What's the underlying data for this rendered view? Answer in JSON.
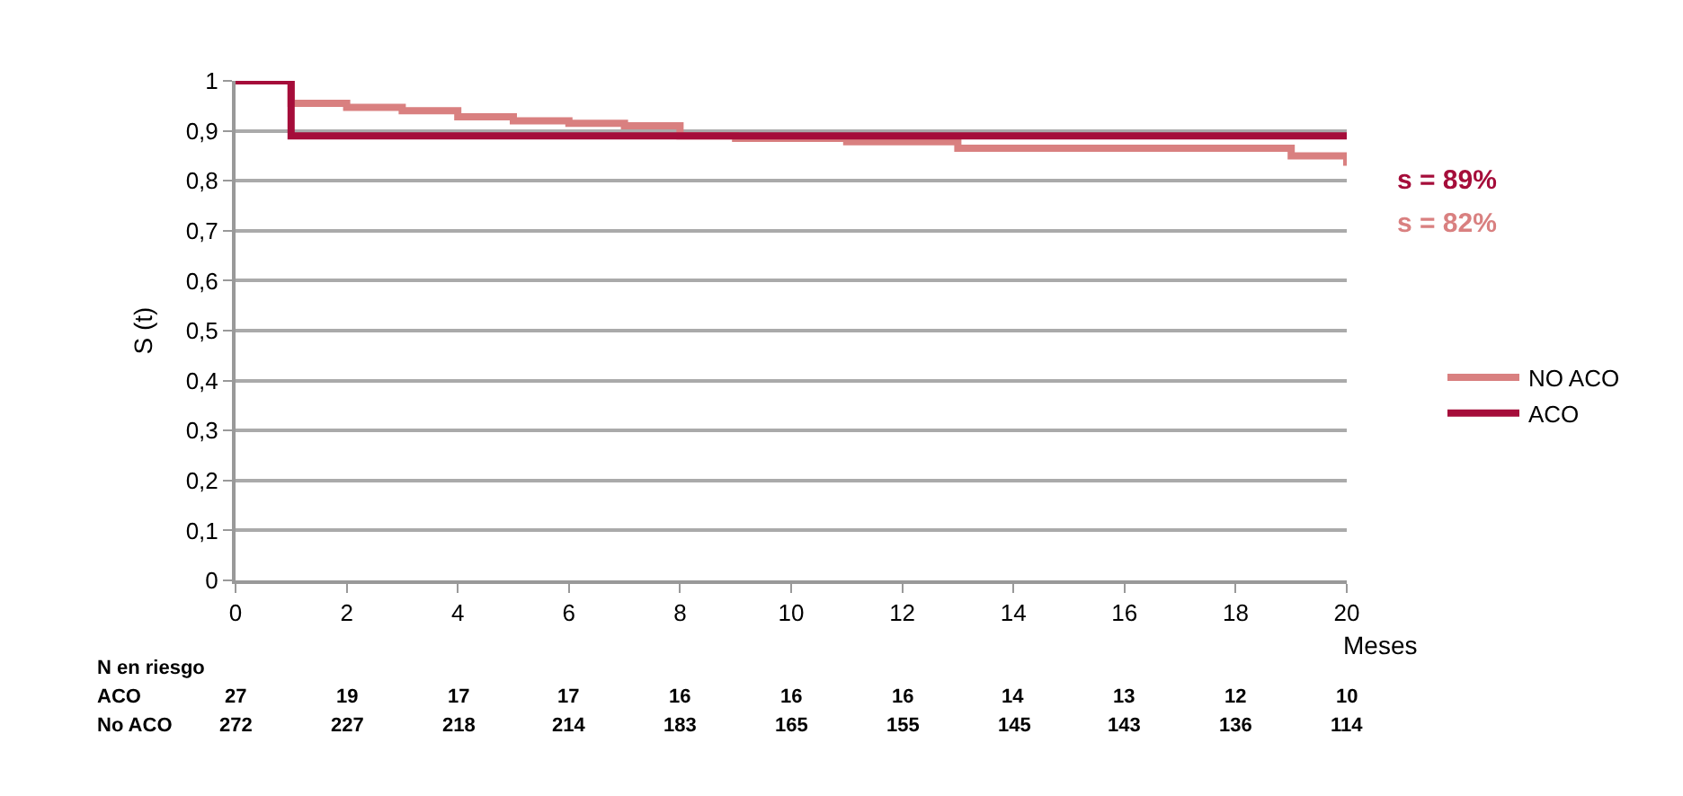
{
  "chart_data": {
    "type": "step",
    "ylabel": "S (t)",
    "xlabel": "Meses",
    "series": [
      {
        "name": "NO ACO",
        "color": "#d98080",
        "x": [
          0,
          1,
          2,
          3,
          4,
          5,
          6,
          7,
          8,
          9,
          11,
          13,
          19,
          20
        ],
        "values": [
          1,
          0.955,
          0.947,
          0.94,
          0.928,
          0.92,
          0.915,
          0.91,
          0.89,
          0.885,
          0.878,
          0.865,
          0.85,
          0.83
        ]
      },
      {
        "name": "ACO",
        "color": "#a50d3a",
        "x": [
          0,
          1,
          20
        ],
        "values": [
          1,
          0.89,
          0.89
        ]
      }
    ],
    "xlim": [
      0,
      20
    ],
    "xticks": [
      0,
      2,
      4,
      6,
      8,
      10,
      12,
      14,
      16,
      18,
      20
    ],
    "ylim": [
      0,
      1
    ],
    "yticks": [
      {
        "value": 0,
        "label": "0"
      },
      {
        "value": 0.1,
        "label": "0,1"
      },
      {
        "value": 0.2,
        "label": "0,2"
      },
      {
        "value": 0.3,
        "label": "0,3"
      },
      {
        "value": 0.4,
        "label": "0,4"
      },
      {
        "value": 0.5,
        "label": "0,5"
      },
      {
        "value": 0.6,
        "label": "0,6"
      },
      {
        "value": 0.7,
        "label": "0,7"
      },
      {
        "value": 0.8,
        "label": "0,8"
      },
      {
        "value": 0.9,
        "label": "0,9"
      },
      {
        "value": 1,
        "label": "1"
      }
    ],
    "grid": "y",
    "legend": "right",
    "line_style": "solid",
    "annotations": [
      "s = 89%",
      "s = 82%",
      "N en riesgo",
      "ACO",
      "27",
      "19",
      "17",
      "17",
      "16",
      "16",
      "16",
      "14",
      "13",
      "12",
      "10",
      "No ACO",
      "272",
      "227",
      "218",
      "214",
      "183",
      "165",
      "155",
      "145",
      "143",
      "136",
      "114"
    ]
  }
}
